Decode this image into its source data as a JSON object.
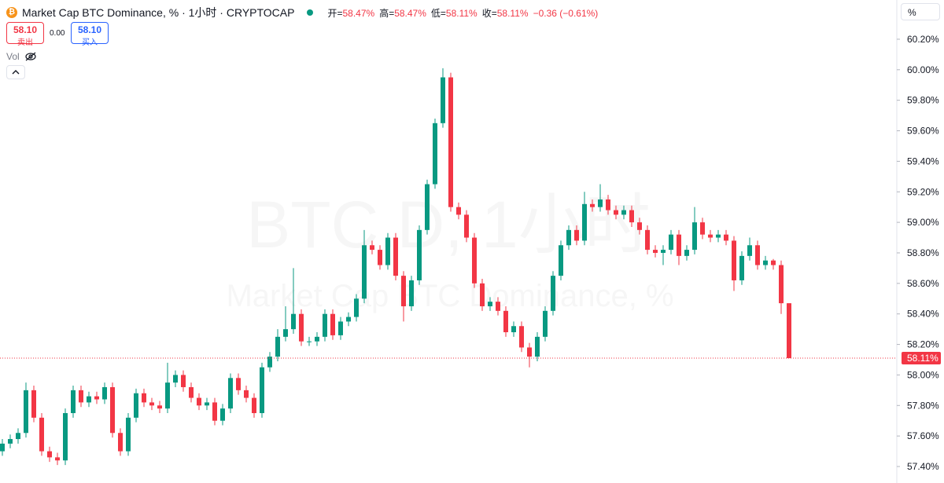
{
  "header": {
    "title": "Market Cap BTC Dominance, % · 1小时 · CRYPTOCAP",
    "ohlc": [
      {
        "label": "开=",
        "value": "58.47%"
      },
      {
        "label": "高=",
        "value": "58.47%"
      },
      {
        "label": "低=",
        "value": "58.11%"
      },
      {
        "label": "收=",
        "value": "58.11%"
      }
    ],
    "change": "−0.36 (−0.61%)"
  },
  "trade": {
    "sell_price": "58.10",
    "sell_label": "卖出",
    "spread": "0.00",
    "buy_price": "58.10",
    "buy_label": "买入"
  },
  "volume_label": "Vol",
  "axis_unit": "%",
  "chart_data": {
    "type": "candlestick",
    "watermark": [
      "BTC.D, 1小时",
      "Market Cap BTC Dominance, %"
    ],
    "up_color": "#089981",
    "down_color": "#f23645",
    "open": [
      57.5,
      57.55,
      57.58,
      57.62,
      57.9,
      57.72,
      57.5,
      57.46,
      57.44,
      57.75,
      57.9,
      57.82,
      57.86,
      57.84,
      57.92,
      57.62,
      57.5,
      57.72,
      57.88,
      57.82,
      57.8,
      57.78,
      57.95,
      58.0,
      57.92,
      57.85,
      57.8,
      57.82,
      57.7,
      57.78,
      57.98,
      57.9,
      57.85,
      57.75,
      58.05,
      58.12,
      58.25,
      58.3,
      58.4,
      58.22,
      58.22,
      58.25,
      58.4,
      58.26,
      58.35,
      58.38,
      58.5,
      58.85,
      58.82,
      58.72,
      58.9,
      58.65,
      58.45,
      58.62,
      58.95,
      59.25,
      59.65,
      59.95,
      59.1,
      59.05,
      58.9,
      58.6,
      58.45,
      58.48,
      58.42,
      58.28,
      58.32,
      58.18,
      58.12,
      58.25,
      58.42,
      58.65,
      58.85,
      58.95,
      58.88,
      59.12,
      59.1,
      59.15,
      59.08,
      59.05,
      59.08,
      59.0,
      58.95,
      58.82,
      58.8,
      58.82,
      58.92,
      58.78,
      58.82,
      59.0,
      58.92,
      58.9,
      58.92,
      58.88,
      58.62,
      58.78,
      58.85,
      58.72,
      58.75,
      58.72,
      58.47
    ],
    "high": [
      57.58,
      57.61,
      57.65,
      57.95,
      57.93,
      57.75,
      57.53,
      57.49,
      57.78,
      57.93,
      57.93,
      57.89,
      57.89,
      57.95,
      57.95,
      57.65,
      57.75,
      57.91,
      57.91,
      57.85,
      57.83,
      58.08,
      58.03,
      58.03,
      57.95,
      57.88,
      57.85,
      57.85,
      57.81,
      58.01,
      58.01,
      57.93,
      57.88,
      58.08,
      58.15,
      58.3,
      58.45,
      58.7,
      58.43,
      58.25,
      58.28,
      58.43,
      58.43,
      58.38,
      58.41,
      58.53,
      58.95,
      58.88,
      58.85,
      58.93,
      58.93,
      58.68,
      58.65,
      58.98,
      59.28,
      59.68,
      60.01,
      59.98,
      59.13,
      59.08,
      58.93,
      58.63,
      58.51,
      58.51,
      58.45,
      58.35,
      58.35,
      58.21,
      58.28,
      58.45,
      58.68,
      58.88,
      58.98,
      58.98,
      59.2,
      59.15,
      59.25,
      59.18,
      59.11,
      59.11,
      59.11,
      59.03,
      58.98,
      58.85,
      58.85,
      58.95,
      58.95,
      58.85,
      59.1,
      59.03,
      58.95,
      58.95,
      58.95,
      58.91,
      58.81,
      58.9,
      58.88,
      58.78,
      58.76,
      58.75,
      58.47
    ],
    "low": [
      57.47,
      57.52,
      57.55,
      57.59,
      57.69,
      57.47,
      57.43,
      57.41,
      57.41,
      57.72,
      57.79,
      57.79,
      57.81,
      57.81,
      57.59,
      57.47,
      57.47,
      57.69,
      57.79,
      57.77,
      57.75,
      57.75,
      57.92,
      57.89,
      57.82,
      57.77,
      57.77,
      57.67,
      57.67,
      57.75,
      57.87,
      57.82,
      57.72,
      57.72,
      58.02,
      58.09,
      58.22,
      58.27,
      58.19,
      58.19,
      58.19,
      58.22,
      58.23,
      58.23,
      58.32,
      58.35,
      58.47,
      58.79,
      58.69,
      58.69,
      58.62,
      58.35,
      58.42,
      58.59,
      58.92,
      59.22,
      59.62,
      59.07,
      59.02,
      58.87,
      58.57,
      58.42,
      58.42,
      58.39,
      58.25,
      58.25,
      58.15,
      58.05,
      58.09,
      58.22,
      58.39,
      58.62,
      58.82,
      58.85,
      58.85,
      59.07,
      59.07,
      59.05,
      59.02,
      59.02,
      58.97,
      58.92,
      58.79,
      58.77,
      58.72,
      58.79,
      58.72,
      58.75,
      58.79,
      58.89,
      58.87,
      58.87,
      58.85,
      58.55,
      58.59,
      58.75,
      58.69,
      58.69,
      58.69,
      58.4,
      58.11
    ],
    "close": [
      57.55,
      57.58,
      57.62,
      57.9,
      57.72,
      57.5,
      57.46,
      57.44,
      57.75,
      57.9,
      57.82,
      57.86,
      57.84,
      57.92,
      57.62,
      57.5,
      57.72,
      57.88,
      57.82,
      57.8,
      57.78,
      57.95,
      58.0,
      57.92,
      57.85,
      57.8,
      57.82,
      57.7,
      57.78,
      57.98,
      57.9,
      57.85,
      57.75,
      58.05,
      58.12,
      58.25,
      58.3,
      58.4,
      58.22,
      58.22,
      58.25,
      58.4,
      58.26,
      58.35,
      58.38,
      58.5,
      58.85,
      58.82,
      58.72,
      58.9,
      58.65,
      58.45,
      58.62,
      58.95,
      59.25,
      59.65,
      59.95,
      59.1,
      59.05,
      58.9,
      58.6,
      58.45,
      58.48,
      58.42,
      58.28,
      58.32,
      58.18,
      58.12,
      58.25,
      58.42,
      58.65,
      58.85,
      58.95,
      58.88,
      59.12,
      59.1,
      59.15,
      59.08,
      59.05,
      59.08,
      59.0,
      58.95,
      58.82,
      58.8,
      58.82,
      58.92,
      58.78,
      58.82,
      59.0,
      58.92,
      58.9,
      58.92,
      58.88,
      58.62,
      58.78,
      58.85,
      58.72,
      58.75,
      58.72,
      58.47,
      58.11
    ],
    "ylim": [
      57.292,
      60.457
    ],
    "yticks": [
      {
        "value": 57.4,
        "label": "57.40%"
      },
      {
        "value": 57.6,
        "label": "57.60%"
      },
      {
        "value": 57.8,
        "label": "57.80%"
      },
      {
        "value": 58.0,
        "label": "58.00%"
      },
      {
        "value": 58.2,
        "label": "58.20%"
      },
      {
        "value": 58.4,
        "label": "58.40%"
      },
      {
        "value": 58.6,
        "label": "58.60%"
      },
      {
        "value": 58.8,
        "label": "58.80%"
      },
      {
        "value": 59.0,
        "label": "59.00%"
      },
      {
        "value": 59.2,
        "label": "59.20%"
      },
      {
        "value": 59.4,
        "label": "59.40%"
      },
      {
        "value": 59.6,
        "label": "59.60%"
      },
      {
        "value": 59.8,
        "label": "59.80%"
      },
      {
        "value": 60.0,
        "label": "60.00%"
      },
      {
        "value": 60.2,
        "label": "60.20%"
      }
    ],
    "last_price_label": "58.11%"
  }
}
